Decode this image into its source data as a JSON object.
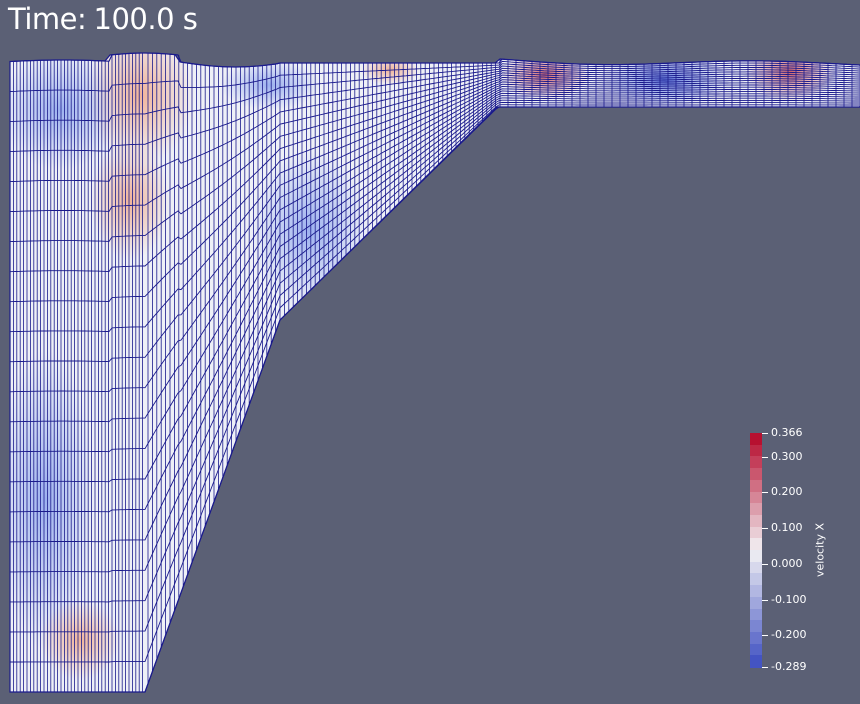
{
  "time": {
    "prefix": "Time:",
    "value": "100.0",
    "unit": "s"
  },
  "colorbar": {
    "title": "velocity X",
    "max_label": "0.366",
    "min_label": "-0.289",
    "range": [
      -0.289,
      0.366
    ],
    "tick_labels": [
      "0.300",
      "0.200",
      "0.100",
      "0.000",
      "-0.100",
      "-0.200"
    ],
    "tick_values": [
      0.3,
      0.2,
      0.1,
      0.0,
      -0.1,
      -0.2
    ],
    "colors": {
      "low": "#3b4cc0",
      "mid": "#f2f1f4",
      "high": "#b40426"
    }
  },
  "colors": {
    "background": "#5b6075",
    "mesh_line": "#1a1a8c",
    "text": "#ffffff"
  }
}
